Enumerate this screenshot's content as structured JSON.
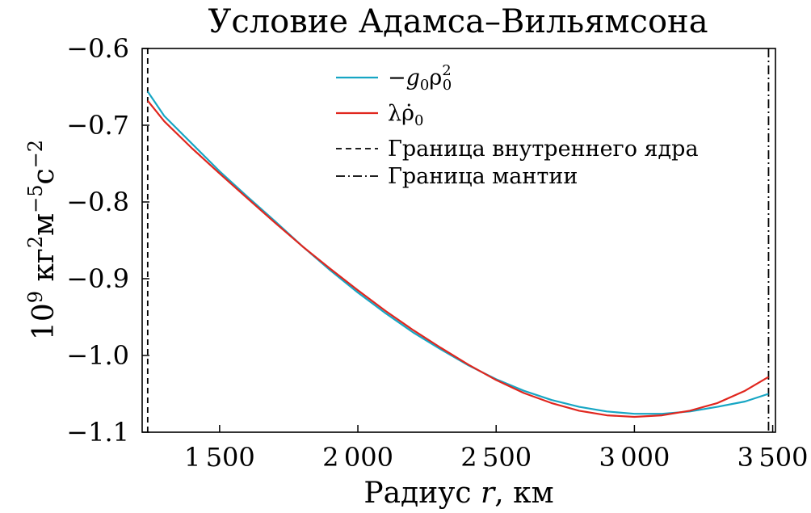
{
  "chart_data": {
    "type": "line",
    "title": "Условие Адамса–Вильямсона",
    "xlabel": {
      "prefix": "Радиус ",
      "var": "r",
      "suffix": ", км"
    },
    "ylabel": {
      "base": "10",
      "exp1": "9",
      "u1": " кг",
      "exp2": "2",
      "u2": "м",
      "exp3": "−5",
      "u3": "с",
      "exp4": "−2"
    },
    "xlim": [
      1220,
      3510
    ],
    "ylim": [
      -1.1,
      -0.6
    ],
    "xticks": [
      {
        "value": 1500,
        "label": "1 500"
      },
      {
        "value": 2000,
        "label": "2 000"
      },
      {
        "value": 2500,
        "label": "2 500"
      },
      {
        "value": 3000,
        "label": "3 000"
      },
      {
        "value": 3500,
        "label": "3 500"
      }
    ],
    "yticks": [
      {
        "value": -0.6,
        "label": "−0.6"
      },
      {
        "value": -0.7,
        "label": "−0.7"
      },
      {
        "value": -0.8,
        "label": "−0.8"
      },
      {
        "value": -0.9,
        "label": "−0.9"
      },
      {
        "value": -1.0,
        "label": "−1.0"
      },
      {
        "value": -1.1,
        "label": "−1.1"
      }
    ],
    "grid": false,
    "legend_position": "top-center",
    "series": [
      {
        "name": "−g₀ρ₀²",
        "legend": {
          "pre": "−",
          "v": "g",
          "s1": "0",
          "mid": "ρ",
          "sup": "2",
          "s2": "0"
        },
        "color": "#17a6c4",
        "x": [
          1240,
          1300,
          1400,
          1500,
          1600,
          1700,
          1800,
          1900,
          2000,
          2100,
          2200,
          2300,
          2400,
          2500,
          2600,
          2700,
          2800,
          2900,
          3000,
          3100,
          3200,
          3300,
          3400,
          3485
        ],
        "y": [
          -0.656,
          -0.688,
          -0.724,
          -0.76,
          -0.793,
          -0.825,
          -0.858,
          -0.889,
          -0.918,
          -0.945,
          -0.97,
          -0.992,
          -1.013,
          -1.031,
          -1.046,
          -1.058,
          -1.067,
          -1.073,
          -1.076,
          -1.076,
          -1.073,
          -1.067,
          -1.06,
          -1.05
        ]
      },
      {
        "name": "λρ̇₀",
        "legend": {
          "pre": "",
          "v": "λρ̇",
          "s1": "0",
          "mid": "",
          "sup": "",
          "s2": ""
        },
        "color": "#e0261e",
        "x": [
          1240,
          1300,
          1400,
          1500,
          1600,
          1700,
          1800,
          1900,
          2000,
          2100,
          2200,
          2300,
          2400,
          2500,
          2600,
          2700,
          2800,
          2900,
          3000,
          3100,
          3200,
          3300,
          3400,
          3485
        ],
        "y": [
          -0.668,
          -0.695,
          -0.73,
          -0.763,
          -0.795,
          -0.827,
          -0.858,
          -0.887,
          -0.915,
          -0.942,
          -0.967,
          -0.99,
          -1.012,
          -1.032,
          -1.049,
          -1.062,
          -1.072,
          -1.078,
          -1.08,
          -1.078,
          -1.072,
          -1.062,
          -1.046,
          -1.028
        ]
      }
    ],
    "vlines": [
      {
        "name": "Граница внутреннего ядра",
        "x": 1240,
        "style": "dashed",
        "color": "#000000"
      },
      {
        "name": "Граница мантии",
        "x": 3485,
        "style": "dashdot",
        "color": "#000000"
      }
    ]
  }
}
